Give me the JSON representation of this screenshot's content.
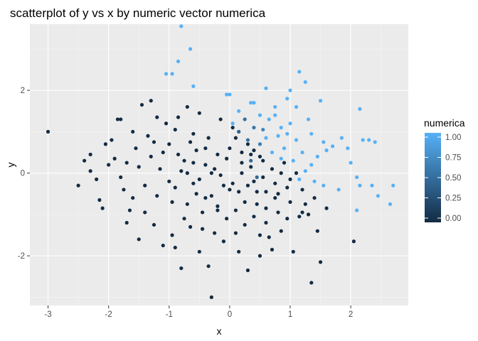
{
  "chart_data": {
    "type": "scatter",
    "title": "scatterplot of y vs x by numeric vector numerica",
    "xlabel": "x",
    "ylabel": "y",
    "xlim": [
      -3.3,
      2.95
    ],
    "ylim": [
      -3.2,
      3.6
    ],
    "x_ticks": [
      -3,
      -2,
      -1,
      0,
      1,
      2
    ],
    "x_tick_labels": [
      "-3",
      "-2",
      "-1",
      "0",
      "1",
      "2"
    ],
    "y_ticks": [
      -2,
      0,
      2
    ],
    "y_tick_labels": [
      "-2",
      "0",
      "2"
    ],
    "grid": true,
    "legend": {
      "title": "numerica",
      "position": "right",
      "type": "colorbar",
      "breaks": [
        "1.00",
        "0.75",
        "0.50",
        "0.25",
        "0.00"
      ],
      "low_color": "#132B43",
      "high_color": "#56B1F7"
    },
    "colors": {
      "panel_background": "#EBEBEB",
      "grid_major": "#FFFFFF",
      "low": "#132B43",
      "high": "#56B1F7"
    },
    "points": [
      {
        "x": -3.0,
        "y": 1.0,
        "c": 0
      },
      {
        "x": -2.5,
        "y": -0.3,
        "c": 0
      },
      {
        "x": -2.4,
        "y": 0.3,
        "c": 0
      },
      {
        "x": -2.3,
        "y": 0.45,
        "c": 0
      },
      {
        "x": -2.2,
        "y": -0.15,
        "c": 0
      },
      {
        "x": -2.15,
        "y": -0.65,
        "c": 0
      },
      {
        "x": -2.1,
        "y": -0.85,
        "c": 0
      },
      {
        "x": -2.05,
        "y": 0.7,
        "c": 0
      },
      {
        "x": -2.0,
        "y": 0.2,
        "c": 0
      },
      {
        "x": -1.95,
        "y": 0.8,
        "c": 0
      },
      {
        "x": -1.9,
        "y": 0.35,
        "c": 0
      },
      {
        "x": -1.85,
        "y": 1.3,
        "c": 0
      },
      {
        "x": -1.8,
        "y": 1.3,
        "c": 0
      },
      {
        "x": -1.75,
        "y": -0.4,
        "c": 0
      },
      {
        "x": -1.7,
        "y": -1.2,
        "c": 0
      },
      {
        "x": -1.65,
        "y": -0.9,
        "c": 0
      },
      {
        "x": -1.6,
        "y": 1.0,
        "c": 0
      },
      {
        "x": -1.55,
        "y": 0.6,
        "c": 0
      },
      {
        "x": -1.5,
        "y": -1.6,
        "c": 0
      },
      {
        "x": -1.45,
        "y": 1.65,
        "c": 0
      },
      {
        "x": -1.4,
        "y": -0.3,
        "c": 0
      },
      {
        "x": -1.35,
        "y": 0.9,
        "c": 0
      },
      {
        "x": -1.3,
        "y": 1.75,
        "c": 0
      },
      {
        "x": -1.25,
        "y": -1.25,
        "c": 0
      },
      {
        "x": -1.2,
        "y": 1.35,
        "c": 0
      },
      {
        "x": -1.15,
        "y": 0.1,
        "c": 0
      },
      {
        "x": -1.1,
        "y": -1.75,
        "c": 0
      },
      {
        "x": -1.05,
        "y": 1.2,
        "c": 0
      },
      {
        "x": -1.0,
        "y": -0.2,
        "c": 0
      },
      {
        "x": -0.95,
        "y": -1.5,
        "c": 0
      },
      {
        "x": -0.9,
        "y": 1.05,
        "c": 0
      },
      {
        "x": -0.85,
        "y": 0.45,
        "c": 0
      },
      {
        "x": -0.8,
        "y": -2.3,
        "c": 0
      },
      {
        "x": -0.75,
        "y": -1.1,
        "c": 0
      },
      {
        "x": -0.7,
        "y": 1.6,
        "c": 0
      },
      {
        "x": -0.65,
        "y": 0.75,
        "c": 0
      },
      {
        "x": -0.6,
        "y": 0.25,
        "c": 0
      },
      {
        "x": -0.55,
        "y": -0.5,
        "c": 0
      },
      {
        "x": -0.5,
        "y": 1.45,
        "c": 0
      },
      {
        "x": -0.45,
        "y": -1.35,
        "c": 0
      },
      {
        "x": -0.4,
        "y": 0.6,
        "c": 0
      },
      {
        "x": -0.35,
        "y": -2.25,
        "c": 0
      },
      {
        "x": -0.3,
        "y": -3.0,
        "c": 0
      },
      {
        "x": -0.25,
        "y": 0.1,
        "c": 0
      },
      {
        "x": -0.2,
        "y": -0.8,
        "c": 0
      },
      {
        "x": -0.15,
        "y": 1.3,
        "c": 0
      },
      {
        "x": -0.1,
        "y": -1.65,
        "c": 0
      },
      {
        "x": -0.05,
        "y": 0.35,
        "c": 0
      },
      {
        "x": 0.05,
        "y": -0.25,
        "c": 0
      },
      {
        "x": 0.1,
        "y": 0.85,
        "c": 0
      },
      {
        "x": 0.15,
        "y": -1.9,
        "c": 0
      },
      {
        "x": 0.2,
        "y": 0.5,
        "c": 0
      },
      {
        "x": 0.25,
        "y": -0.7,
        "c": 0
      },
      {
        "x": 0.3,
        "y": -2.35,
        "c": 0
      },
      {
        "x": 0.35,
        "y": 0.15,
        "c": 0
      },
      {
        "x": 0.4,
        "y": -1.05,
        "c": 0
      },
      {
        "x": 0.45,
        "y": -0.45,
        "c": 0
      },
      {
        "x": 0.5,
        "y": -1.5,
        "c": 0
      },
      {
        "x": 0.55,
        "y": 0.3,
        "c": 0
      },
      {
        "x": 0.6,
        "y": -1.2,
        "c": 0
      },
      {
        "x": 0.7,
        "y": -1.85,
        "c": 0
      },
      {
        "x": 0.75,
        "y": -0.6,
        "c": 0
      },
      {
        "x": 0.85,
        "y": -1.4,
        "c": 0
      },
      {
        "x": 0.95,
        "y": -0.35,
        "c": 0
      },
      {
        "x": 1.05,
        "y": -1.9,
        "c": 0
      },
      {
        "x": 1.15,
        "y": -1.05,
        "c": 0
      },
      {
        "x": 1.25,
        "y": -0.75,
        "c": 0
      },
      {
        "x": 1.35,
        "y": -2.65,
        "c": 0
      },
      {
        "x": 1.45,
        "y": -1.4,
        "c": 0
      },
      {
        "x": 1.5,
        "y": -2.15,
        "c": 0
      },
      {
        "x": 1.6,
        "y": -0.85,
        "c": 0
      },
      {
        "x": 2.05,
        "y": -1.65,
        "c": 0
      },
      {
        "x": -1.6,
        "y": -0.6,
        "c": 0
      },
      {
        "x": -1.3,
        "y": 0.4,
        "c": 0
      },
      {
        "x": -1.2,
        "y": -0.55,
        "c": 0
      },
      {
        "x": -1.0,
        "y": 0.7,
        "c": 0
      },
      {
        "x": -0.9,
        "y": -0.35,
        "c": 0
      },
      {
        "x": -0.8,
        "y": 0.05,
        "c": 0
      },
      {
        "x": -0.7,
        "y": -0.75,
        "c": 0
      },
      {
        "x": -0.6,
        "y": 0.95,
        "c": 0
      },
      {
        "x": -0.5,
        "y": -0.15,
        "c": 0
      },
      {
        "x": -0.4,
        "y": 0.2,
        "c": 0
      },
      {
        "x": -0.3,
        "y": -0.55,
        "c": 0
      },
      {
        "x": -0.2,
        "y": 0.45,
        "c": 0
      },
      {
        "x": -0.1,
        "y": -0.3,
        "c": 0
      },
      {
        "x": 0.0,
        "y": 0.6,
        "c": 0
      },
      {
        "x": 0.1,
        "y": -0.9,
        "c": 0
      },
      {
        "x": 0.2,
        "y": 0.0,
        "c": 0
      },
      {
        "x": 0.3,
        "y": 0.7,
        "c": 0
      },
      {
        "x": 0.4,
        "y": -0.2,
        "c": 0
      },
      {
        "x": 0.5,
        "y": 0.4,
        "c": 0
      },
      {
        "x": 0.6,
        "y": -0.85,
        "c": 0
      },
      {
        "x": 0.7,
        "y": 0.1,
        "c": 0
      },
      {
        "x": 0.8,
        "y": -0.5,
        "c": 0
      },
      {
        "x": 0.9,
        "y": 0.25,
        "c": 0
      },
      {
        "x": 1.0,
        "y": -0.7,
        "c": 0
      },
      {
        "x": 1.1,
        "y": 0.0,
        "c": 0
      },
      {
        "x": 1.2,
        "y": -0.4,
        "c": 0
      },
      {
        "x": 1.3,
        "y": -1.0,
        "c": 0
      },
      {
        "x": -1.5,
        "y": 0.15,
        "c": 0
      },
      {
        "x": -1.4,
        "y": -0.95,
        "c": 0
      },
      {
        "x": -1.1,
        "y": 0.5,
        "c": 0
      },
      {
        "x": -0.95,
        "y": -0.7,
        "c": 0
      },
      {
        "x": -0.65,
        "y": -1.3,
        "c": 0
      },
      {
        "x": -0.55,
        "y": 0.55,
        "c": 0
      },
      {
        "x": -0.45,
        "y": -0.95,
        "c": 0
      },
      {
        "x": -0.35,
        "y": 0.85,
        "c": 0
      },
      {
        "x": -0.25,
        "y": -1.45,
        "c": 0
      },
      {
        "x": -0.15,
        "y": -0.05,
        "c": 0
      },
      {
        "x": -0.05,
        "y": -1.1,
        "c": 0
      },
      {
        "x": 0.05,
        "y": 1.1,
        "c": 0
      },
      {
        "x": 0.15,
        "y": -0.45,
        "c": 0
      },
      {
        "x": 0.25,
        "y": -1.25,
        "c": 0
      },
      {
        "x": 0.35,
        "y": 0.45,
        "c": 0
      },
      {
        "x": 0.45,
        "y": -0.75,
        "c": 0
      },
      {
        "x": 0.55,
        "y": -0.1,
        "c": 0
      },
      {
        "x": 0.65,
        "y": -1.55,
        "c": 0
      },
      {
        "x": 0.75,
        "y": -0.25,
        "c": 0
      },
      {
        "x": 0.85,
        "y": 0.0,
        "c": 0
      },
      {
        "x": 0.95,
        "y": -1.1,
        "c": 0
      },
      {
        "x": -1.7,
        "y": 0.25,
        "c": 0
      },
      {
        "x": -1.25,
        "y": 0.75,
        "c": 0
      },
      {
        "x": -0.85,
        "y": 1.35,
        "c": 0
      },
      {
        "x": -0.75,
        "y": 0.3,
        "c": 0
      },
      {
        "x": -0.6,
        "y": -0.25,
        "c": 0
      },
      {
        "x": -0.4,
        "y": -0.6,
        "c": 0
      },
      {
        "x": -0.2,
        "y": -0.9,
        "c": 0
      },
      {
        "x": 0.0,
        "y": -0.4,
        "c": 0
      },
      {
        "x": 0.2,
        "y": 0.25,
        "c": 0
      },
      {
        "x": 0.4,
        "y": 0.55,
        "c": 0
      },
      {
        "x": 0.6,
        "y": -0.45,
        "c": 0
      },
      {
        "x": 0.8,
        "y": -0.95,
        "c": 0
      },
      {
        "x": 1.0,
        "y": -0.15,
        "c": 0
      },
      {
        "x": 1.2,
        "y": -0.95,
        "c": 0
      },
      {
        "x": 1.4,
        "y": -0.6,
        "c": 0
      },
      {
        "x": -0.9,
        "y": -1.8,
        "c": 0
      },
      {
        "x": -0.5,
        "y": -1.9,
        "c": 0
      },
      {
        "x": 0.1,
        "y": -1.45,
        "c": 0
      },
      {
        "x": 0.5,
        "y": -2.0,
        "c": 0
      },
      {
        "x": -1.8,
        "y": -0.1,
        "c": 0
      },
      {
        "x": -2.3,
        "y": 0.05,
        "c": 0
      },
      {
        "x": -0.3,
        "y": 0.0,
        "c": 0
      },
      {
        "x": -0.7,
        "y": 0.0,
        "c": 0
      },
      {
        "x": 0.3,
        "y": -0.3,
        "c": 0
      },
      {
        "x": 0.3,
        "y": 0.8,
        "c": 0.5
      },
      {
        "x": 0.4,
        "y": 1.1,
        "c": 0.55
      },
      {
        "x": 0.5,
        "y": 0.7,
        "c": 0.6
      },
      {
        "x": 0.35,
        "y": 0.3,
        "c": 0.45
      },
      {
        "x": 0.45,
        "y": -0.1,
        "c": 0.45
      },
      {
        "x": 0.25,
        "y": 1.3,
        "c": 0.5
      },
      {
        "x": 0.55,
        "y": 1.05,
        "c": 0.7
      },
      {
        "x": 0.15,
        "y": 1.0,
        "c": 0.4
      },
      {
        "x": -1.05,
        "y": 2.4,
        "c": 1
      },
      {
        "x": -0.95,
        "y": 2.4,
        "c": 1
      },
      {
        "x": -0.85,
        "y": 2.7,
        "c": 1
      },
      {
        "x": -0.8,
        "y": 3.55,
        "c": 1
      },
      {
        "x": -0.65,
        "y": 3.0,
        "c": 1
      },
      {
        "x": -0.6,
        "y": 2.1,
        "c": 1
      },
      {
        "x": -0.05,
        "y": 1.9,
        "c": 1
      },
      {
        "x": 0.0,
        "y": 1.9,
        "c": 1
      },
      {
        "x": 0.05,
        "y": 1.2,
        "c": 1
      },
      {
        "x": 0.4,
        "y": 1.7,
        "c": 1
      },
      {
        "x": 0.6,
        "y": 2.05,
        "c": 1
      },
      {
        "x": 0.75,
        "y": 1.4,
        "c": 1
      },
      {
        "x": 0.85,
        "y": 1.1,
        "c": 1
      },
      {
        "x": 0.95,
        "y": 1.8,
        "c": 1
      },
      {
        "x": 1.0,
        "y": 2.0,
        "c": 1
      },
      {
        "x": 1.1,
        "y": 1.6,
        "c": 1
      },
      {
        "x": 1.15,
        "y": 2.45,
        "c": 1
      },
      {
        "x": 1.25,
        "y": 2.2,
        "c": 1
      },
      {
        "x": 1.3,
        "y": 1.3,
        "c": 1
      },
      {
        "x": 1.35,
        "y": 0.95,
        "c": 1
      },
      {
        "x": 1.5,
        "y": 1.75,
        "c": 1
      },
      {
        "x": 1.55,
        "y": 0.75,
        "c": 1
      },
      {
        "x": 1.7,
        "y": 0.65,
        "c": 1
      },
      {
        "x": 1.85,
        "y": 0.85,
        "c": 1
      },
      {
        "x": 1.95,
        "y": 0.6,
        "c": 1
      },
      {
        "x": 2.0,
        "y": 0.25,
        "c": 1
      },
      {
        "x": 2.1,
        "y": -0.1,
        "c": 1
      },
      {
        "x": 2.15,
        "y": 1.55,
        "c": 1
      },
      {
        "x": 2.2,
        "y": 0.8,
        "c": 1
      },
      {
        "x": 2.3,
        "y": 0.8,
        "c": 1
      },
      {
        "x": 2.4,
        "y": 0.75,
        "c": 1
      },
      {
        "x": 2.45,
        "y": -0.55,
        "c": 1
      },
      {
        "x": 2.65,
        "y": -0.75,
        "c": 1
      },
      {
        "x": 2.7,
        "y": -0.3,
        "c": 1
      },
      {
        "x": 2.15,
        "y": -0.3,
        "c": 1
      },
      {
        "x": 2.1,
        "y": -0.9,
        "c": 1
      },
      {
        "x": 1.8,
        "y": -0.4,
        "c": 1
      },
      {
        "x": 1.55,
        "y": -0.3,
        "c": 1
      },
      {
        "x": 1.4,
        "y": -0.2,
        "c": 1
      },
      {
        "x": 1.35,
        "y": 0.2,
        "c": 1
      },
      {
        "x": 1.2,
        "y": 0.5,
        "c": 1
      },
      {
        "x": 1.1,
        "y": 0.8,
        "c": 1
      },
      {
        "x": 1.0,
        "y": 1.2,
        "c": 1
      },
      {
        "x": 0.9,
        "y": 0.6,
        "c": 1
      },
      {
        "x": 0.8,
        "y": 0.9,
        "c": 1
      },
      {
        "x": 0.7,
        "y": 0.5,
        "c": 1
      },
      {
        "x": 0.65,
        "y": 1.3,
        "c": 1
      },
      {
        "x": 0.6,
        "y": 0.85,
        "c": 1
      },
      {
        "x": 1.05,
        "y": 0.3,
        "c": 1
      },
      {
        "x": 1.25,
        "y": 0.05,
        "c": 1
      },
      {
        "x": 0.95,
        "y": 0.95,
        "c": 1
      },
      {
        "x": 1.45,
        "y": 0.4,
        "c": 1
      },
      {
        "x": 1.15,
        "y": -0.15,
        "c": 1
      },
      {
        "x": 0.85,
        "y": 0.35,
        "c": 1
      },
      {
        "x": 0.75,
        "y": 1.6,
        "c": 1
      },
      {
        "x": 0.5,
        "y": 1.4,
        "c": 1
      },
      {
        "x": 0.35,
        "y": 1.7,
        "c": 1
      },
      {
        "x": 0.15,
        "y": 1.5,
        "c": 1
      },
      {
        "x": 1.6,
        "y": 0.55,
        "c": 1
      },
      {
        "x": 2.35,
        "y": -0.3,
        "c": 1
      }
    ]
  }
}
